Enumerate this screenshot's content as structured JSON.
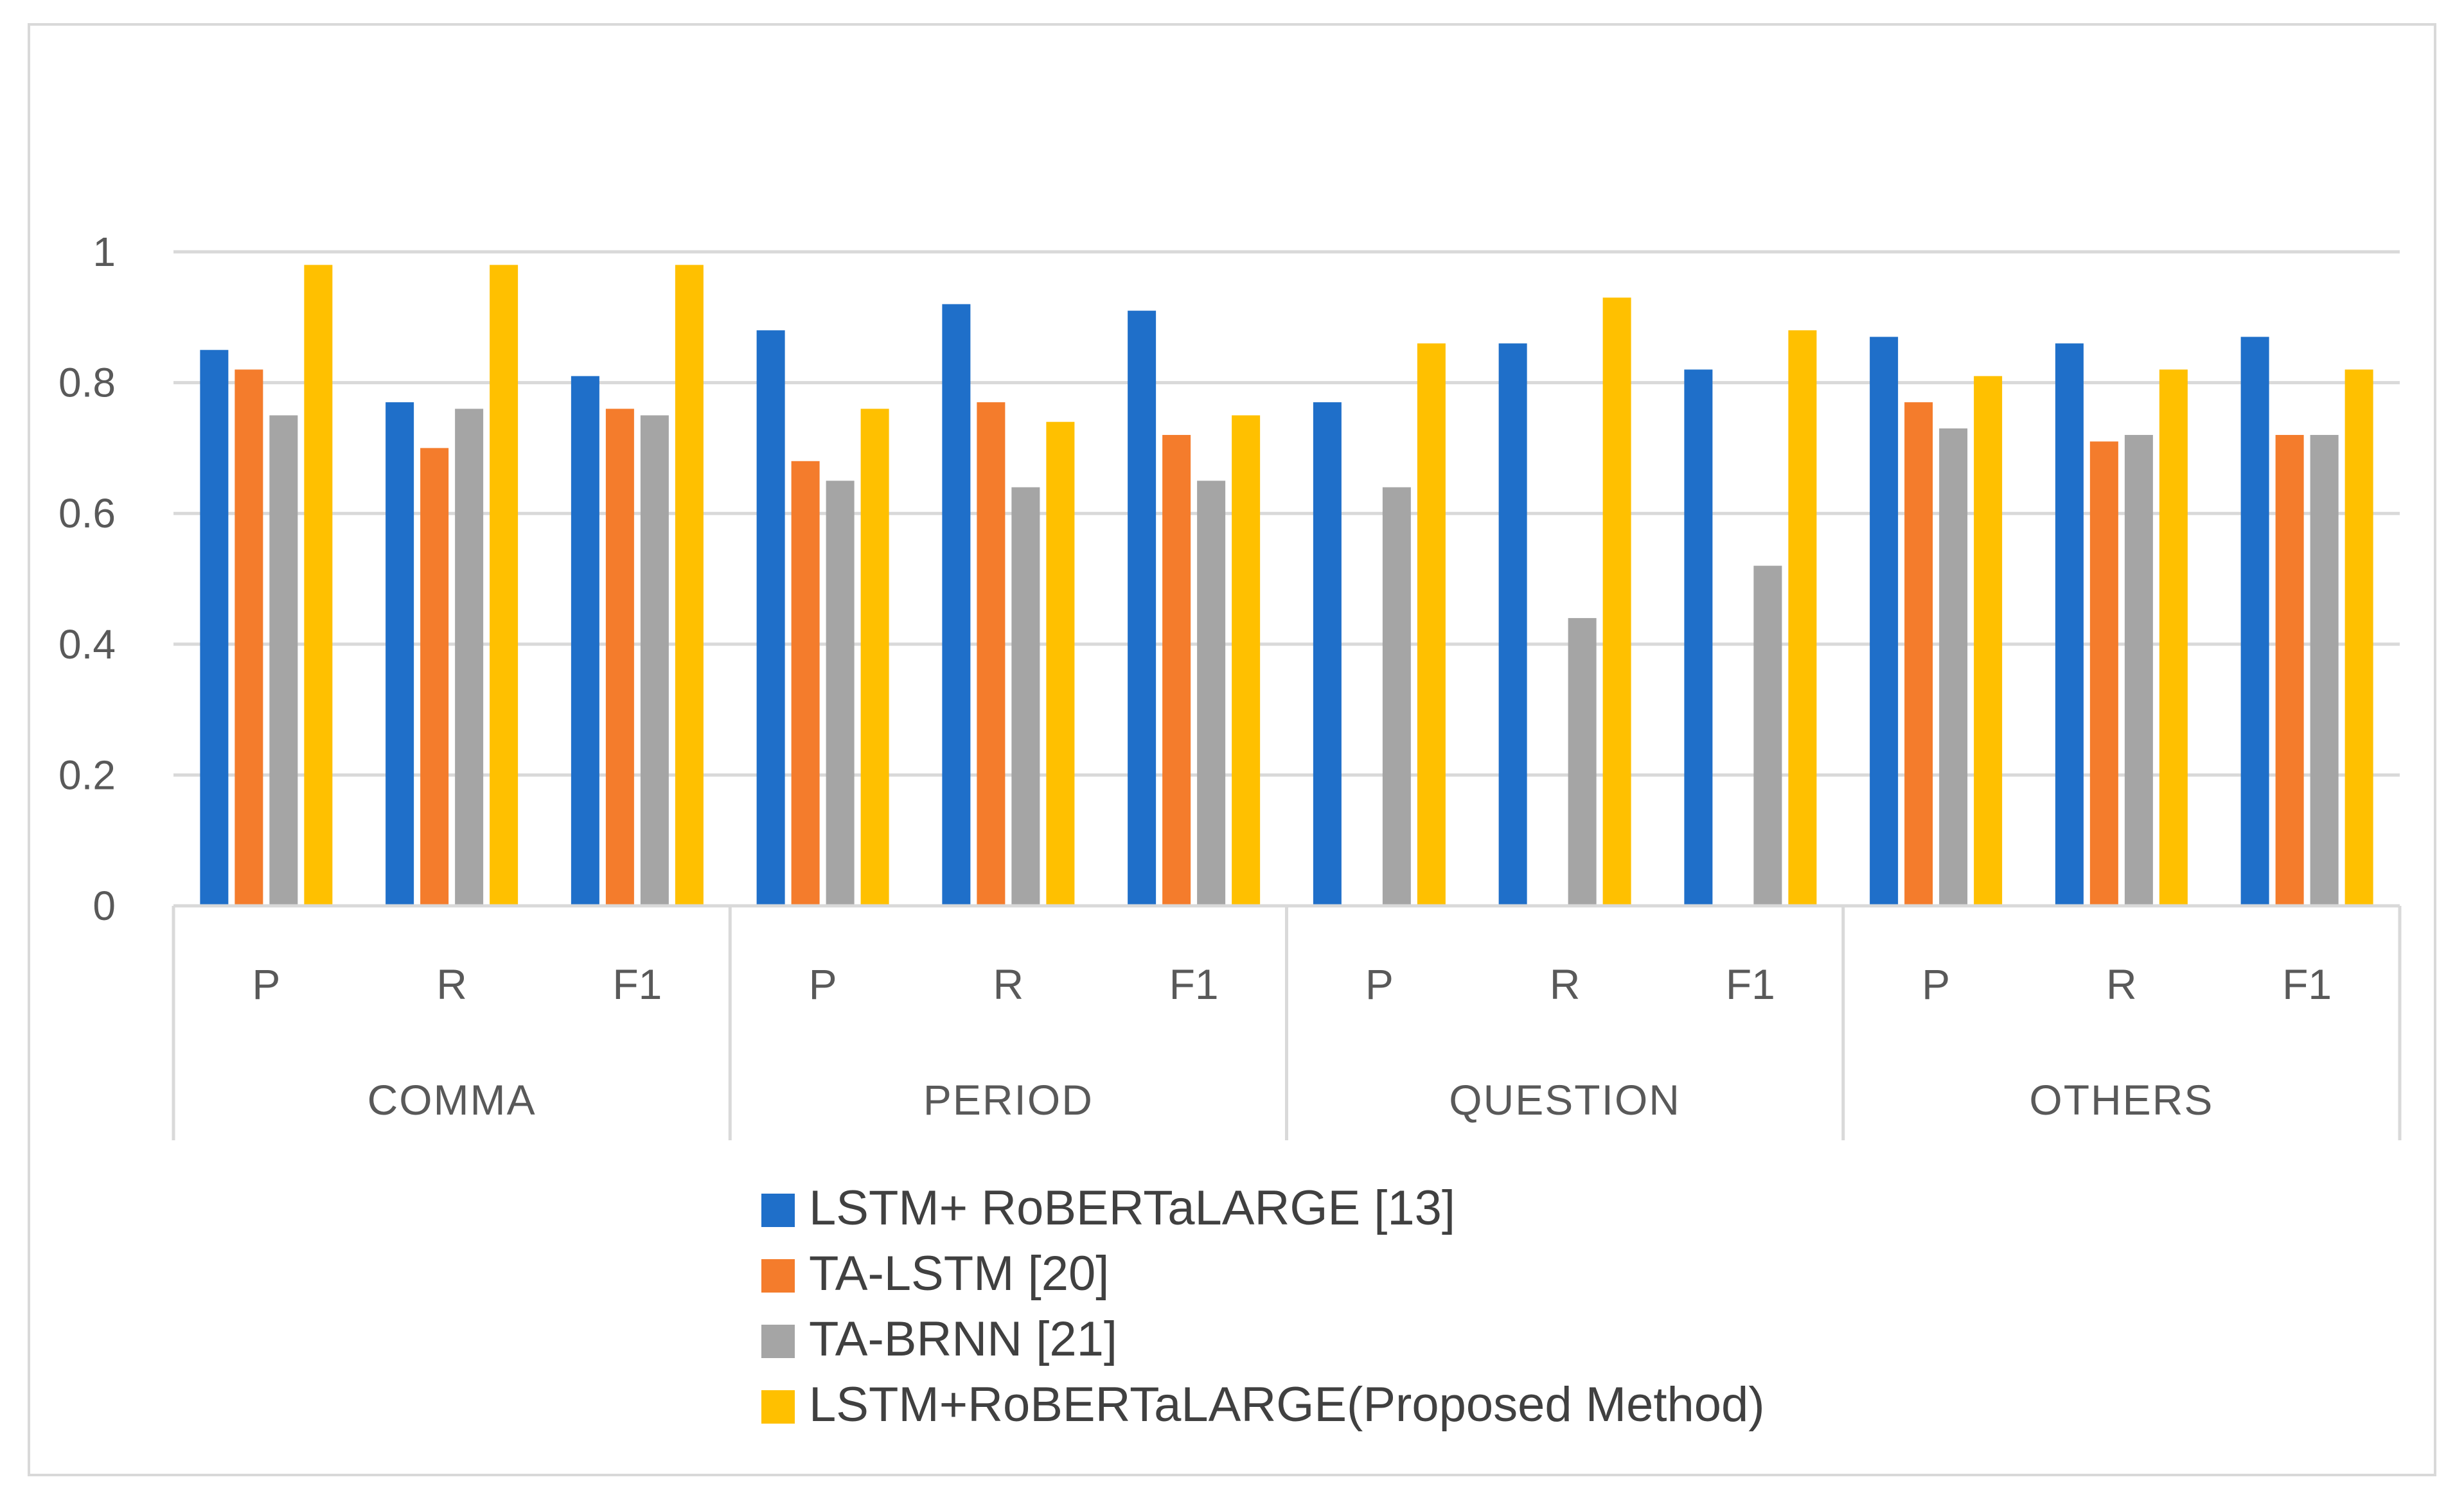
{
  "chart_data": {
    "type": "bar",
    "title": "",
    "xlabel": "",
    "ylabel": "",
    "ylim": [
      0,
      1
    ],
    "yticks": [
      0,
      0.2,
      0.4,
      0.6,
      0.8,
      1
    ],
    "ytick_labels": [
      "0",
      "0.2",
      "0.4",
      "0.6",
      "0.8",
      "1"
    ],
    "grid": true,
    "legend_position": "bottom",
    "groups": [
      {
        "label": "COMMA",
        "metrics": [
          "P",
          "R",
          "F1"
        ]
      },
      {
        "label": "PERIOD",
        "metrics": [
          "P",
          "R",
          "F1"
        ]
      },
      {
        "label": "QUESTION",
        "metrics": [
          "P",
          "R",
          "F1"
        ]
      },
      {
        "label": "OTHERS",
        "metrics": [
          "P",
          "R",
          "F1"
        ]
      }
    ],
    "categories": [
      "COMMA P",
      "COMMA R",
      "COMMA F1",
      "PERIOD P",
      "PERIOD R",
      "PERIOD F1",
      "QUESTION P",
      "QUESTION R",
      "QUESTION F1",
      "OTHERS P",
      "OTHERS R",
      "OTHERS F1"
    ],
    "series": [
      {
        "name": "LSTM+ RoBERTaLARGE [13]",
        "color": "#1F6FC9",
        "values": [
          0.85,
          0.77,
          0.81,
          0.88,
          0.92,
          0.91,
          0.77,
          0.86,
          0.82,
          0.87,
          0.86,
          0.87
        ]
      },
      {
        "name": "TA-LSTM [20]",
        "color": "#F47C2C",
        "values": [
          0.82,
          0.7,
          0.76,
          0.68,
          0.77,
          0.72,
          0,
          0,
          0,
          0.77,
          0.71,
          0.72
        ]
      },
      {
        "name": "TA-BRNN [21]",
        "color": "#A5A5A5",
        "values": [
          0.75,
          0.76,
          0.75,
          0.65,
          0.64,
          0.65,
          0.64,
          0.44,
          0.52,
          0.73,
          0.72,
          0.72
        ]
      },
      {
        "name": "LSTM+RoBERTaLARGE(Proposed Method)",
        "color": "#FFC000",
        "values": [
          0.98,
          0.98,
          0.98,
          0.76,
          0.74,
          0.75,
          0.86,
          0.93,
          0.88,
          0.81,
          0.82,
          0.82
        ]
      }
    ]
  }
}
